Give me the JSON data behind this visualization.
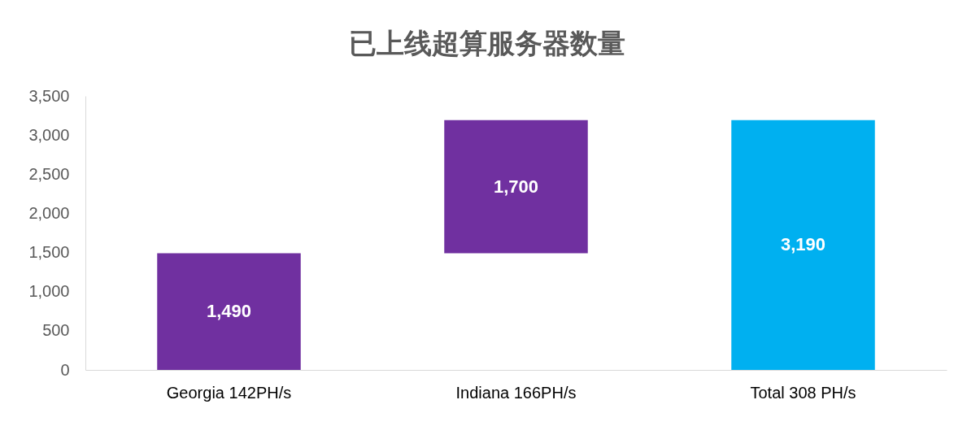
{
  "chart_data": {
    "type": "bar",
    "title": "已上线超算服务器数量",
    "categories": [
      "Georgia 142PH/s",
      "Indiana 166PH/s",
      "Total 308 PH/s"
    ],
    "values": [
      1490,
      1700,
      3190
    ],
    "base": [
      0,
      1490,
      0
    ],
    "colors": [
      "#7030a0",
      "#7030a0",
      "#00b0f0"
    ],
    "value_labels": [
      "1,490",
      "1,700",
      "3,190"
    ],
    "ylim": [
      0,
      3500
    ],
    "yticks": [
      0,
      500,
      {
        "value": 1000,
        "label": "1,000"
      },
      {
        "value": 1500,
        "label": "1,500"
      },
      {
        "value": 2000,
        "label": "2,000"
      },
      {
        "value": 2500,
        "label": "2,500"
      },
      {
        "value": 3000,
        "label": "3,000"
      },
      {
        "value": 3500,
        "label": "3,500"
      }
    ],
    "grid": false,
    "legend": false
  }
}
